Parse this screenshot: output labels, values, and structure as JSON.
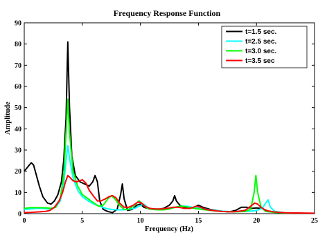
{
  "chart_data": {
    "type": "line",
    "title": "Frequency Response Function",
    "xlabel": "Frequency (Hz)",
    "ylabel": "Amplitude",
    "xlim": [
      0,
      25
    ],
    "ylim": [
      0,
      90
    ],
    "xticks": [
      0,
      5,
      10,
      15,
      20,
      25
    ],
    "yticks": [
      0,
      10,
      20,
      30,
      40,
      50,
      60,
      70,
      80,
      90
    ],
    "grid": false,
    "legend_position": "top-right",
    "series": [
      {
        "name": "t=1.5 sec.",
        "color": "#000000",
        "points": [
          [
            0.0,
            20
          ],
          [
            0.3,
            22
          ],
          [
            0.6,
            24
          ],
          [
            0.8,
            23
          ],
          [
            1.0,
            19
          ],
          [
            1.3,
            13
          ],
          [
            1.6,
            8
          ],
          [
            2.0,
            5
          ],
          [
            2.3,
            4.5
          ],
          [
            2.6,
            6
          ],
          [
            2.9,
            9
          ],
          [
            3.2,
            15
          ],
          [
            3.4,
            25
          ],
          [
            3.6,
            45
          ],
          [
            3.75,
            81
          ],
          [
            3.9,
            50
          ],
          [
            4.1,
            27
          ],
          [
            4.4,
            18
          ],
          [
            4.8,
            15
          ],
          [
            5.2,
            14
          ],
          [
            5.6,
            13
          ],
          [
            5.9,
            15
          ],
          [
            6.1,
            18
          ],
          [
            6.3,
            15
          ],
          [
            6.5,
            6
          ],
          [
            6.8,
            2
          ],
          [
            7.2,
            1
          ],
          [
            7.6,
            0.5
          ],
          [
            8.0,
            2
          ],
          [
            8.3,
            9
          ],
          [
            8.45,
            14
          ],
          [
            8.6,
            7
          ],
          [
            8.9,
            1.5
          ],
          [
            9.3,
            2
          ],
          [
            9.7,
            4
          ],
          [
            10.0,
            4.5
          ],
          [
            10.3,
            3
          ],
          [
            10.8,
            2.2
          ],
          [
            11.5,
            2
          ],
          [
            12.0,
            2.5
          ],
          [
            12.5,
            4
          ],
          [
            12.8,
            6
          ],
          [
            12.95,
            8.5
          ],
          [
            13.1,
            6
          ],
          [
            13.4,
            4
          ],
          [
            13.8,
            3
          ],
          [
            14.2,
            2.5
          ],
          [
            14.6,
            3
          ],
          [
            15.0,
            4
          ],
          [
            15.4,
            3
          ],
          [
            16.0,
            2
          ],
          [
            16.8,
            1.3
          ],
          [
            17.6,
            0.8
          ],
          [
            18.2,
            1.5
          ],
          [
            18.7,
            3
          ],
          [
            19.2,
            3
          ],
          [
            19.6,
            2.5
          ],
          [
            20.0,
            2.7
          ],
          [
            20.5,
            2.4
          ],
          [
            21.0,
            1.2
          ],
          [
            22.0,
            0.5
          ],
          [
            23.0,
            0.2
          ],
          [
            25.0,
            0.1
          ]
        ]
      },
      {
        "name": "t=2.5 sec.",
        "color": "#00ffff",
        "points": [
          [
            0.0,
            2
          ],
          [
            0.5,
            2.2
          ],
          [
            1.0,
            2.5
          ],
          [
            1.5,
            2.5
          ],
          [
            2.0,
            2.3
          ],
          [
            2.3,
            2.2
          ],
          [
            2.7,
            3
          ],
          [
            3.1,
            6
          ],
          [
            3.4,
            14
          ],
          [
            3.6,
            25
          ],
          [
            3.75,
            32
          ],
          [
            3.9,
            26
          ],
          [
            4.2,
            17
          ],
          [
            4.6,
            11
          ],
          [
            5.0,
            8
          ],
          [
            5.5,
            6
          ],
          [
            6.0,
            4.5
          ],
          [
            6.5,
            3.5
          ],
          [
            7.0,
            2.5
          ],
          [
            7.5,
            2
          ],
          [
            8.0,
            1.8
          ],
          [
            8.5,
            1.8
          ],
          [
            9.0,
            2
          ],
          [
            9.5,
            2.5
          ],
          [
            10.0,
            3.8
          ],
          [
            10.3,
            4.5
          ],
          [
            10.6,
            3
          ],
          [
            11.0,
            2.2
          ],
          [
            12.0,
            2.2
          ],
          [
            12.5,
            2.5
          ],
          [
            13.0,
            3
          ],
          [
            13.5,
            3.5
          ],
          [
            14.0,
            3.5
          ],
          [
            14.5,
            3
          ],
          [
            15.0,
            2.6
          ],
          [
            15.5,
            2.2
          ],
          [
            16.0,
            1.8
          ],
          [
            17.0,
            1.2
          ],
          [
            18.0,
            0.9
          ],
          [
            19.0,
            1
          ],
          [
            19.5,
            1.2
          ],
          [
            20.0,
            1.5
          ],
          [
            20.5,
            2.5
          ],
          [
            20.8,
            5
          ],
          [
            21.0,
            6.5
          ],
          [
            21.2,
            3
          ],
          [
            21.6,
            1
          ],
          [
            22.5,
            0.4
          ],
          [
            25.0,
            0.1
          ]
        ]
      },
      {
        "name": "t=3.0 sec.",
        "color": "#00ff00",
        "points": [
          [
            0.0,
            2.5
          ],
          [
            0.5,
            2.8
          ],
          [
            1.0,
            2.8
          ],
          [
            1.5,
            2.8
          ],
          [
            2.0,
            2.7
          ],
          [
            2.3,
            2.5
          ],
          [
            2.7,
            3
          ],
          [
            3.1,
            7
          ],
          [
            3.4,
            18
          ],
          [
            3.6,
            38
          ],
          [
            3.75,
            54
          ],
          [
            3.9,
            38
          ],
          [
            4.2,
            20
          ],
          [
            4.6,
            13
          ],
          [
            5.0,
            9
          ],
          [
            5.5,
            7
          ],
          [
            6.0,
            5
          ],
          [
            6.4,
            3.5
          ],
          [
            6.8,
            4
          ],
          [
            7.2,
            7
          ],
          [
            7.5,
            8.5
          ],
          [
            7.8,
            7
          ],
          [
            8.2,
            4
          ],
          [
            8.6,
            2
          ],
          [
            9.0,
            2
          ],
          [
            9.5,
            4
          ],
          [
            9.9,
            6
          ],
          [
            10.2,
            4.5
          ],
          [
            10.6,
            2.5
          ],
          [
            11.0,
            2
          ],
          [
            11.5,
            1.8
          ],
          [
            12.0,
            1.8
          ],
          [
            12.5,
            2.2
          ],
          [
            13.0,
            3
          ],
          [
            13.5,
            3.6
          ],
          [
            14.0,
            3.2
          ],
          [
            14.5,
            2.6
          ],
          [
            15.0,
            2.2
          ],
          [
            16.0,
            1.5
          ],
          [
            17.0,
            1
          ],
          [
            18.0,
            0.8
          ],
          [
            19.0,
            1
          ],
          [
            19.5,
            2
          ],
          [
            19.8,
            10
          ],
          [
            19.95,
            18
          ],
          [
            20.1,
            10
          ],
          [
            20.4,
            3
          ],
          [
            20.8,
            1
          ],
          [
            21.5,
            0.6
          ],
          [
            22.5,
            0.3
          ],
          [
            25.0,
            0.1
          ]
        ]
      },
      {
        "name": "t=3.5 sec",
        "color": "#ff0000",
        "points": [
          [
            0.0,
            0.5
          ],
          [
            0.6,
            0.6
          ],
          [
            1.2,
            0.8
          ],
          [
            1.8,
            1
          ],
          [
            2.2,
            1.5
          ],
          [
            2.6,
            3
          ],
          [
            3.0,
            6
          ],
          [
            3.3,
            10
          ],
          [
            3.55,
            15
          ],
          [
            3.75,
            18
          ],
          [
            3.95,
            17
          ],
          [
            4.2,
            15.5
          ],
          [
            4.5,
            15
          ],
          [
            4.8,
            15.5
          ],
          [
            5.0,
            16
          ],
          [
            5.3,
            14.5
          ],
          [
            5.6,
            11
          ],
          [
            6.0,
            8
          ],
          [
            6.3,
            6
          ],
          [
            6.6,
            6
          ],
          [
            7.0,
            7
          ],
          [
            7.3,
            8
          ],
          [
            7.6,
            8.5
          ],
          [
            7.9,
            7.5
          ],
          [
            8.2,
            5
          ],
          [
            8.6,
            3
          ],
          [
            9.0,
            3
          ],
          [
            9.4,
            4
          ],
          [
            9.8,
            5.5
          ],
          [
            10.1,
            5
          ],
          [
            10.4,
            3.5
          ],
          [
            10.8,
            2.5
          ],
          [
            11.3,
            2.2
          ],
          [
            11.8,
            2.2
          ],
          [
            12.3,
            2.5
          ],
          [
            12.8,
            3
          ],
          [
            13.3,
            3
          ],
          [
            13.8,
            2.5
          ],
          [
            14.3,
            2.5
          ],
          [
            14.8,
            3.5
          ],
          [
            15.2,
            3
          ],
          [
            15.6,
            2
          ],
          [
            16.2,
            1.5
          ],
          [
            17.0,
            1
          ],
          [
            18.0,
            0.8
          ],
          [
            19.0,
            1.5
          ],
          [
            19.5,
            3.5
          ],
          [
            19.85,
            5
          ],
          [
            20.1,
            4.5
          ],
          [
            20.4,
            3
          ],
          [
            20.8,
            1.5
          ],
          [
            21.5,
            0.8
          ],
          [
            22.5,
            0.4
          ],
          [
            25.0,
            0.2
          ]
        ]
      }
    ]
  }
}
